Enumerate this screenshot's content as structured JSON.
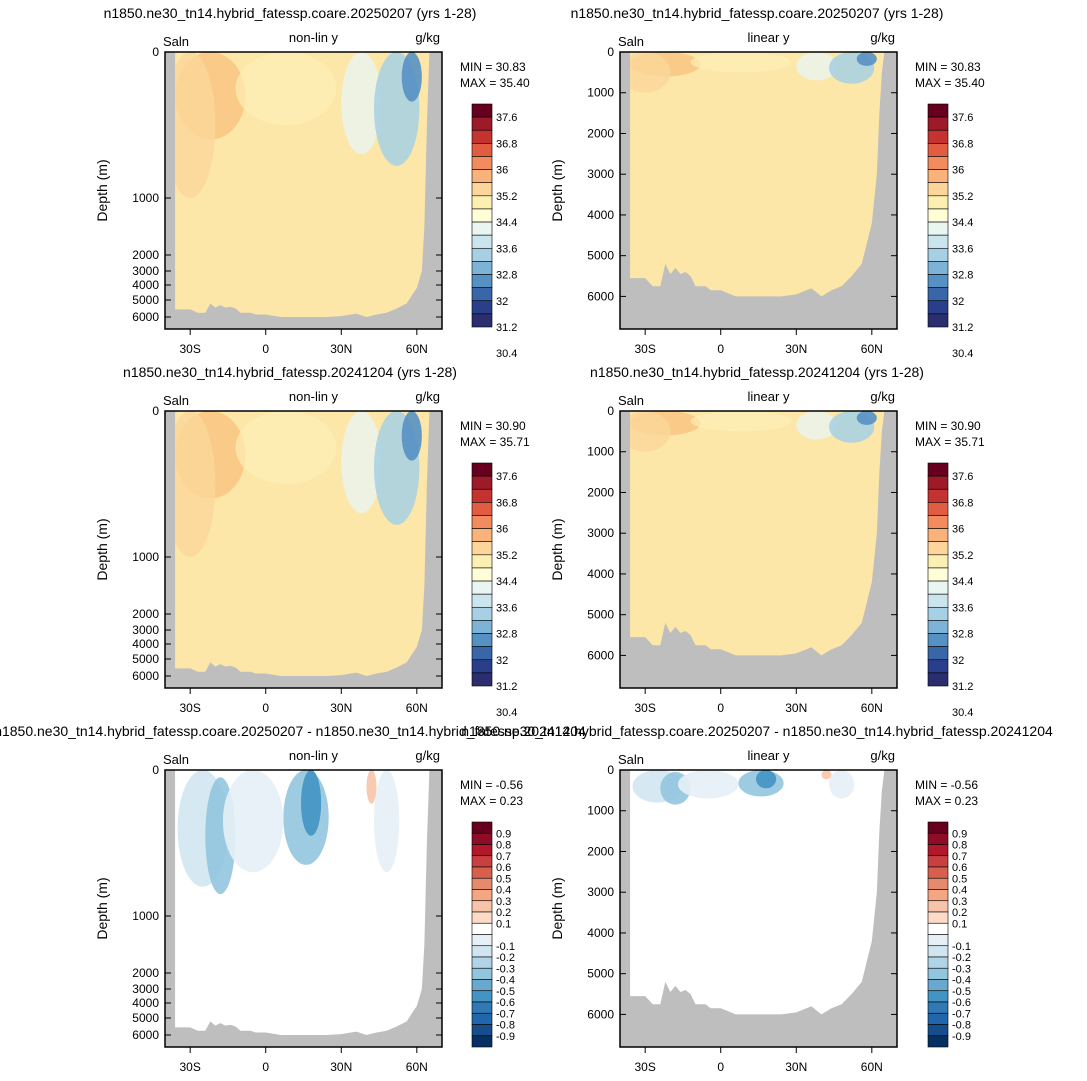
{
  "chart_data": [
    {
      "type": "heatmap",
      "title": "n1850.ne30_tn14.hybrid_fatessp.coare.20250207 (yrs 1-28)",
      "left_label": "Saln",
      "center_label": "non-lin y",
      "right_label": "g/kg",
      "ylabel": "Depth (m)",
      "y_scale": "non-linear",
      "y_ticks": [
        "0",
        "1000",
        "2000",
        "3000",
        "4000",
        "5000",
        "6000"
      ],
      "x_ticks": [
        "30S",
        "0",
        "30N",
        "60N"
      ],
      "min_label": "MIN =  30.83",
      "max_label": "MAX =  35.40",
      "colorbar": {
        "labels": [
          "37.6",
          "36.8",
          "36",
          "35.2",
          "34.4",
          "33.6",
          "32.8",
          "32",
          "31.2",
          "30.4"
        ],
        "colors": [
          "#67001f",
          "#9e1a28",
          "#c43330",
          "#e25c42",
          "#f28b5e",
          "#f9b27a",
          "#fdd59a",
          "#fcefb2",
          "#fffed6",
          "#e9f5f0",
          "#cbe5ee",
          "#a7d0e4",
          "#7cb3d6",
          "#5591c3",
          "#3866a8",
          "#2a3f8c",
          "#2b2e6e"
        ]
      },
      "field": "salinity"
    },
    {
      "type": "heatmap",
      "title": "n1850.ne30_tn14.hybrid_fatessp.coare.20250207 (yrs 1-28)",
      "left_label": "Saln",
      "center_label": "linear y",
      "right_label": "g/kg",
      "ylabel": "Depth (m)",
      "y_scale": "linear",
      "y_ticks": [
        "0",
        "1000",
        "2000",
        "3000",
        "4000",
        "5000",
        "6000"
      ],
      "x_ticks": [
        "30S",
        "0",
        "30N",
        "60N"
      ],
      "min_label": "MIN =  30.83",
      "max_label": "MAX =  35.40",
      "colorbar": {
        "labels": [
          "37.6",
          "36.8",
          "36",
          "35.2",
          "34.4",
          "33.6",
          "32.8",
          "32",
          "31.2",
          "30.4"
        ],
        "colors": [
          "#67001f",
          "#9e1a28",
          "#c43330",
          "#e25c42",
          "#f28b5e",
          "#f9b27a",
          "#fdd59a",
          "#fcefb2",
          "#fffed6",
          "#e9f5f0",
          "#cbe5ee",
          "#a7d0e4",
          "#7cb3d6",
          "#5591c3",
          "#3866a8",
          "#2a3f8c",
          "#2b2e6e"
        ]
      },
      "field": "salinity"
    },
    {
      "type": "heatmap",
      "title": "n1850.ne30_tn14.hybrid_fatessp.20241204 (yrs 1-28)",
      "left_label": "Saln",
      "center_label": "non-lin y",
      "right_label": "g/kg",
      "ylabel": "Depth (m)",
      "y_scale": "non-linear",
      "y_ticks": [
        "0",
        "1000",
        "2000",
        "3000",
        "4000",
        "5000",
        "6000"
      ],
      "x_ticks": [
        "30S",
        "0",
        "30N",
        "60N"
      ],
      "min_label": "MIN =  30.90",
      "max_label": "MAX =  35.71",
      "colorbar": {
        "labels": [
          "37.6",
          "36.8",
          "36",
          "35.2",
          "34.4",
          "33.6",
          "32.8",
          "32",
          "31.2",
          "30.4"
        ],
        "colors": [
          "#67001f",
          "#9e1a28",
          "#c43330",
          "#e25c42",
          "#f28b5e",
          "#f9b27a",
          "#fdd59a",
          "#fcefb2",
          "#fffed6",
          "#e9f5f0",
          "#cbe5ee",
          "#a7d0e4",
          "#7cb3d6",
          "#5591c3",
          "#3866a8",
          "#2a3f8c",
          "#2b2e6e"
        ]
      },
      "field": "salinity"
    },
    {
      "type": "heatmap",
      "title": "n1850.ne30_tn14.hybrid_fatessp.20241204 (yrs 1-28)",
      "left_label": "Saln",
      "center_label": "linear y",
      "right_label": "g/kg",
      "ylabel": "Depth (m)",
      "y_scale": "linear",
      "y_ticks": [
        "0",
        "1000",
        "2000",
        "3000",
        "4000",
        "5000",
        "6000"
      ],
      "x_ticks": [
        "30S",
        "0",
        "30N",
        "60N"
      ],
      "min_label": "MIN =  30.90",
      "max_label": "MAX =  35.71",
      "colorbar": {
        "labels": [
          "37.6",
          "36.8",
          "36",
          "35.2",
          "34.4",
          "33.6",
          "32.8",
          "32",
          "31.2",
          "30.4"
        ],
        "colors": [
          "#67001f",
          "#9e1a28",
          "#c43330",
          "#e25c42",
          "#f28b5e",
          "#f9b27a",
          "#fdd59a",
          "#fcefb2",
          "#fffed6",
          "#e9f5f0",
          "#cbe5ee",
          "#a7d0e4",
          "#7cb3d6",
          "#5591c3",
          "#3866a8",
          "#2a3f8c",
          "#2b2e6e"
        ]
      },
      "field": "salinity"
    },
    {
      "type": "heatmap",
      "title": "n1850.ne30_tn14.hybrid_fatessp.coare.20250207 - n1850.ne30_tn14.hybrid_fatessp.20241204",
      "left_label": "Saln",
      "center_label": "non-lin y",
      "right_label": "g/kg",
      "ylabel": "Depth (m)",
      "y_scale": "non-linear",
      "y_ticks": [
        "0",
        "1000",
        "2000",
        "3000",
        "4000",
        "5000",
        "6000"
      ],
      "x_ticks": [
        "30S",
        "0",
        "30N",
        "60N"
      ],
      "min_label": "MIN =  -0.56",
      "max_label": "MAX =   0.23",
      "colorbar": {
        "labels": [
          "0.9",
          "0.8",
          "0.7",
          "0.6",
          "0.5",
          "0.4",
          "0.3",
          "0.2",
          "0.1",
          "-0.1",
          "-0.2",
          "-0.3",
          "-0.4",
          "-0.5",
          "-0.6",
          "-0.7",
          "-0.8",
          "-0.9"
        ],
        "colors": [
          "#67001f",
          "#8e0c25",
          "#b2182b",
          "#c8403f",
          "#d6604d",
          "#e68a6f",
          "#f4a582",
          "#f7c4a9",
          "#fddbc7",
          "#ffffff",
          "#e6f0f6",
          "#d1e5f0",
          "#b0d3e7",
          "#92c5de",
          "#6aa8cf",
          "#4393c3",
          "#2f79b5",
          "#2166ac",
          "#164e8d",
          "#053061"
        ]
      },
      "field": "difference"
    },
    {
      "type": "heatmap",
      "title": "n1850.ne30_tn14.hybrid_fatessp.coare.20250207 - n1850.ne30_tn14.hybrid_fatessp.20241204",
      "left_label": "Saln",
      "center_label": "linear y",
      "right_label": "g/kg",
      "ylabel": "Depth (m)",
      "y_scale": "linear",
      "y_ticks": [
        "0",
        "1000",
        "2000",
        "3000",
        "4000",
        "5000",
        "6000"
      ],
      "x_ticks": [
        "30S",
        "0",
        "30N",
        "60N"
      ],
      "min_label": "MIN =  -0.56",
      "max_label": "MAX =   0.23",
      "colorbar": {
        "labels": [
          "0.9",
          "0.8",
          "0.7",
          "0.6",
          "0.5",
          "0.4",
          "0.3",
          "0.2",
          "0.1",
          "-0.1",
          "-0.2",
          "-0.3",
          "-0.4",
          "-0.5",
          "-0.6",
          "-0.7",
          "-0.8",
          "-0.9"
        ],
        "colors": [
          "#67001f",
          "#8e0c25",
          "#b2182b",
          "#c8403f",
          "#d6604d",
          "#e68a6f",
          "#f4a582",
          "#f7c4a9",
          "#fddbc7",
          "#ffffff",
          "#e6f0f6",
          "#d1e5f0",
          "#b0d3e7",
          "#92c5de",
          "#6aa8cf",
          "#4393c3",
          "#2f79b5",
          "#2166ac",
          "#164e8d",
          "#053061"
        ]
      },
      "field": "difference"
    }
  ]
}
